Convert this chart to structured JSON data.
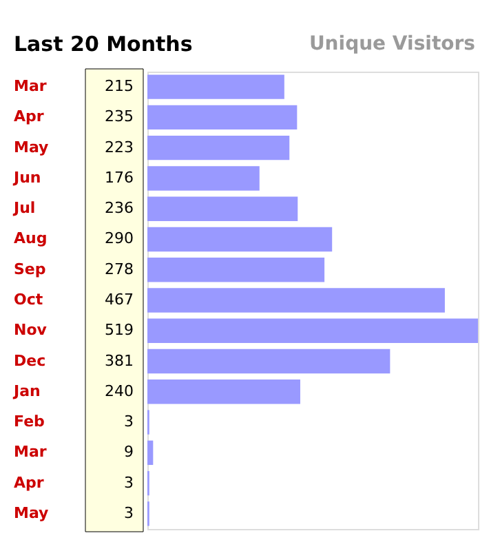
{
  "chart_data": {
    "type": "bar",
    "orientation": "horizontal",
    "title": "Last 20 Months",
    "subtitle": "Unique Visitors",
    "categories": [
      "Mar",
      "Apr",
      "May",
      "Jun",
      "Jul",
      "Aug",
      "Sep",
      "Oct",
      "Nov",
      "Dec",
      "Jan",
      "Feb",
      "Mar",
      "Apr",
      "May"
    ],
    "values": [
      215,
      235,
      223,
      176,
      236,
      290,
      278,
      467,
      519,
      381,
      240,
      3,
      9,
      3,
      3
    ],
    "color": "#9999ff",
    "data_labels": true
  }
}
